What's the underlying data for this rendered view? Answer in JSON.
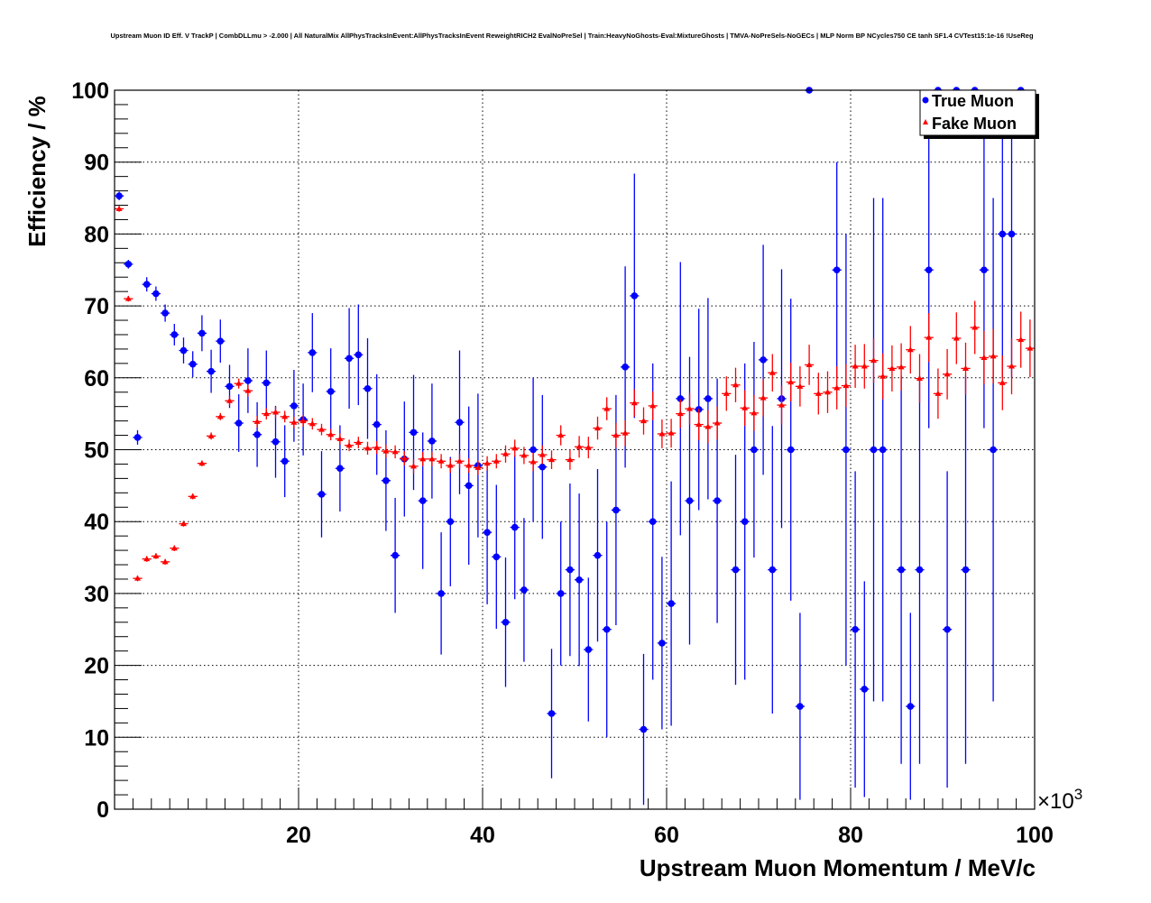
{
  "chart_data": {
    "type": "scatter",
    "title": "Upstream Muon ID Eff. V TrackP | CombDLLmu > -2.000 | All NaturalMix AllPhysTracksInEvent:AllPhysTracksInEvent ReweightRICH2 EvalNoPreSel | Train:HeavyNoGhosts-Eval:MixtureGhosts | TMVA-NoPreSels-NoGECs | MLP Norm BP NCycles750 CE tanh SF1.4 CVTest15:1e-16 !UseReg",
    "xlabel": "Upstream Muon Momentum / MeV/c",
    "ylabel": "Efficiency / %",
    "x_multiplier": "×10",
    "x_multiplier_exp": "3",
    "xlim": [
      0,
      100
    ],
    "ylim": [
      0,
      100
    ],
    "xticks": [
      "20",
      "40",
      "60",
      "80",
      "100"
    ],
    "yticks": [
      "0",
      "10",
      "20",
      "30",
      "40",
      "50",
      "60",
      "70",
      "80",
      "90",
      "100"
    ],
    "grid": true,
    "legend_position": "top-right",
    "series": [
      {
        "name": "True Muon",
        "color": "#0000ff",
        "marker": "circle",
        "points": [
          [
            0.5,
            85.3,
            0.6
          ],
          [
            1.5,
            75.8,
            0.6
          ],
          [
            2.5,
            51.7,
            1
          ],
          [
            3.5,
            73.0,
            1
          ],
          [
            4.5,
            71.7,
            1
          ],
          [
            5.5,
            69.0,
            1.2
          ],
          [
            6.5,
            66.0,
            1.5
          ],
          [
            7.5,
            63.8,
            1.8
          ],
          [
            8.5,
            61.9,
            1.8
          ],
          [
            9.5,
            66.2,
            2.5
          ],
          [
            10.5,
            60.9,
            3
          ],
          [
            11.5,
            65.1,
            3
          ],
          [
            12.5,
            58.8,
            3
          ],
          [
            13.5,
            53.7,
            4
          ],
          [
            14.5,
            59.6,
            4.5
          ],
          [
            15.5,
            52.1,
            4.5
          ],
          [
            16.5,
            59.3,
            4.5
          ],
          [
            17.5,
            51.1,
            5
          ],
          [
            18.5,
            48.4,
            5
          ],
          [
            19.5,
            56.1,
            5
          ],
          [
            20.5,
            54.2,
            5
          ],
          [
            21.5,
            63.5,
            5.5
          ],
          [
            22.5,
            43.8,
            6
          ],
          [
            23.5,
            58.1,
            6
          ],
          [
            24.5,
            47.4,
            6
          ],
          [
            25.5,
            62.7,
            7
          ],
          [
            26.5,
            63.2,
            7
          ],
          [
            27.5,
            58.5,
            7
          ],
          [
            28.5,
            53.5,
            7
          ],
          [
            29.5,
            45.7,
            7
          ],
          [
            30.5,
            35.3,
            8
          ],
          [
            31.5,
            48.7,
            8
          ],
          [
            32.5,
            52.4,
            8
          ],
          [
            33.5,
            42.9,
            9.5
          ],
          [
            34.5,
            51.2,
            8
          ],
          [
            35.5,
            30.0,
            8.5
          ],
          [
            36.5,
            40.0,
            9
          ],
          [
            37.5,
            53.8,
            10
          ],
          [
            38.5,
            45.0,
            11
          ],
          [
            39.5,
            47.8,
            10
          ],
          [
            40.5,
            38.5,
            10
          ],
          [
            41.5,
            35.1,
            10
          ],
          [
            42.5,
            26.0,
            9
          ],
          [
            43.5,
            39.2,
            10
          ],
          [
            44.5,
            30.5,
            10
          ],
          [
            45.5,
            50.0,
            10
          ],
          [
            46.5,
            47.6,
            10
          ],
          [
            47.5,
            13.3,
            9
          ],
          [
            48.5,
            30.0,
            10
          ],
          [
            49.5,
            33.3,
            12
          ],
          [
            50.5,
            31.9,
            12
          ],
          [
            51.5,
            22.2,
            10
          ],
          [
            52.5,
            35.3,
            12
          ],
          [
            53.5,
            25.0,
            15
          ],
          [
            54.5,
            41.6,
            16
          ],
          [
            55.5,
            61.5,
            14
          ],
          [
            56.5,
            71.4,
            17
          ],
          [
            57.5,
            11.1,
            10.5
          ],
          [
            58.5,
            40.0,
            22
          ],
          [
            59.5,
            23.1,
            12
          ],
          [
            60.5,
            28.6,
            17
          ],
          [
            61.5,
            57.1,
            19
          ],
          [
            62.5,
            42.9,
            20
          ],
          [
            63.5,
            55.6,
            14
          ],
          [
            64.5,
            57.1,
            14
          ],
          [
            65.5,
            42.9,
            17
          ],
          [
            67.5,
            33.3,
            16
          ],
          [
            68.5,
            40.0,
            22
          ],
          [
            69.5,
            50.0,
            15
          ],
          [
            70.5,
            62.5,
            16
          ],
          [
            71.5,
            33.3,
            20
          ],
          [
            72.5,
            57.1,
            18
          ],
          [
            73.5,
            50.0,
            21
          ],
          [
            74.5,
            14.3,
            13
          ],
          [
            75.5,
            100,
            0
          ],
          [
            78.5,
            75.0,
            15
          ],
          [
            79.5,
            50.0,
            30
          ],
          [
            80.5,
            25.0,
            22
          ],
          [
            81.5,
            16.7,
            15
          ],
          [
            82.5,
            50.0,
            35
          ],
          [
            83.5,
            50.0,
            35
          ],
          [
            85.5,
            33.3,
            27
          ],
          [
            86.5,
            14.3,
            13
          ],
          [
            87.5,
            33.3,
            27
          ],
          [
            88.5,
            75.0,
            22
          ],
          [
            89.5,
            100,
            0
          ],
          [
            90.5,
            25.0,
            22
          ],
          [
            91.5,
            100,
            0
          ],
          [
            92.5,
            33.3,
            27
          ],
          [
            93.5,
            100,
            0
          ],
          [
            94.5,
            75.0,
            22
          ],
          [
            95.5,
            50.0,
            35
          ],
          [
            96.5,
            80.0,
            20
          ],
          [
            97.5,
            80.0,
            20
          ],
          [
            98.5,
            100,
            0
          ]
        ]
      },
      {
        "name": "Fake Muon",
        "color": "#ff0000",
        "marker": "triangle",
        "points": [
          [
            0.5,
            83.5,
            0.4
          ],
          [
            1.5,
            71.0,
            0.4
          ],
          [
            2.5,
            32.1,
            0.4
          ],
          [
            3.5,
            34.8,
            0.4
          ],
          [
            4.5,
            35.2,
            0.4
          ],
          [
            5.5,
            34.4,
            0.4
          ],
          [
            6.5,
            36.3,
            0.4
          ],
          [
            7.5,
            39.7,
            0.4
          ],
          [
            8.5,
            43.5,
            0.4
          ],
          [
            9.5,
            48.1,
            0.4
          ],
          [
            10.5,
            51.9,
            0.5
          ],
          [
            11.5,
            54.6,
            0.5
          ],
          [
            12.5,
            56.8,
            0.7
          ],
          [
            13.5,
            59.2,
            0.7
          ],
          [
            14.5,
            58.2,
            0.8
          ],
          [
            15.5,
            53.9,
            0.8
          ],
          [
            16.5,
            55.0,
            0.8
          ],
          [
            17.5,
            55.2,
            0.8
          ],
          [
            18.5,
            54.6,
            0.8
          ],
          [
            19.5,
            53.8,
            0.8
          ],
          [
            20.5,
            54.0,
            0.8
          ],
          [
            21.5,
            53.6,
            0.8
          ],
          [
            22.5,
            52.8,
            0.8
          ],
          [
            23.5,
            52.1,
            0.8
          ],
          [
            24.5,
            51.5,
            0.8
          ],
          [
            25.5,
            50.6,
            0.8
          ],
          [
            26.5,
            51.0,
            0.8
          ],
          [
            27.5,
            50.2,
            0.9
          ],
          [
            28.5,
            50.3,
            0.9
          ],
          [
            29.5,
            49.8,
            0.9
          ],
          [
            30.5,
            49.7,
            0.9
          ],
          [
            31.5,
            48.8,
            1
          ],
          [
            32.5,
            47.7,
            1
          ],
          [
            33.5,
            48.7,
            1
          ],
          [
            34.5,
            48.7,
            1
          ],
          [
            35.5,
            48.4,
            1
          ],
          [
            36.5,
            47.8,
            1
          ],
          [
            37.5,
            48.4,
            1
          ],
          [
            38.5,
            47.8,
            1
          ],
          [
            39.5,
            47.5,
            1
          ],
          [
            40.5,
            48.1,
            1
          ],
          [
            41.5,
            48.4,
            1
          ],
          [
            42.5,
            49.4,
            1.2
          ],
          [
            43.5,
            50.2,
            1.2
          ],
          [
            44.5,
            49.2,
            1.2
          ],
          [
            45.5,
            48.3,
            1.3
          ],
          [
            46.5,
            49.3,
            1.3
          ],
          [
            47.5,
            48.6,
            1.3
          ],
          [
            48.5,
            52.0,
            1.4
          ],
          [
            49.5,
            48.6,
            1.4
          ],
          [
            50.5,
            50.4,
            1.5
          ],
          [
            51.5,
            50.3,
            1.5
          ],
          [
            52.5,
            53.0,
            1.6
          ],
          [
            53.5,
            55.7,
            1.6
          ],
          [
            54.5,
            52.0,
            1.7
          ],
          [
            55.5,
            52.3,
            1.8
          ],
          [
            56.5,
            56.5,
            1.9
          ],
          [
            57.5,
            54.0,
            1.9
          ],
          [
            58.5,
            56.1,
            2
          ],
          [
            59.5,
            52.2,
            2
          ],
          [
            60.5,
            52.3,
            2
          ],
          [
            61.5,
            55.0,
            2
          ],
          [
            62.5,
            55.7,
            2.2
          ],
          [
            63.5,
            53.5,
            2.2
          ],
          [
            64.5,
            53.2,
            2.3
          ],
          [
            65.5,
            53.7,
            2.3
          ],
          [
            66.5,
            57.8,
            2.4
          ],
          [
            67.5,
            59.0,
            2.4
          ],
          [
            68.5,
            55.8,
            2.5
          ],
          [
            69.5,
            55.1,
            2.5
          ],
          [
            70.5,
            57.2,
            2.6
          ],
          [
            71.5,
            60.7,
            2.6
          ],
          [
            72.5,
            56.2,
            2.7
          ],
          [
            73.5,
            59.4,
            2.7
          ],
          [
            74.5,
            58.8,
            2.8
          ],
          [
            75.5,
            61.8,
            2.8
          ],
          [
            76.5,
            57.8,
            2.9
          ],
          [
            77.5,
            58.0,
            2.9
          ],
          [
            78.5,
            58.6,
            3
          ],
          [
            79.5,
            58.9,
            3
          ],
          [
            80.5,
            61.6,
            3
          ],
          [
            81.5,
            61.6,
            3.1
          ],
          [
            82.5,
            62.4,
            3.1
          ],
          [
            83.5,
            60.2,
            3.2
          ],
          [
            84.5,
            61.3,
            3.2
          ],
          [
            85.5,
            61.5,
            3.3
          ],
          [
            86.5,
            63.9,
            3.3
          ],
          [
            87.5,
            59.9,
            3.4
          ],
          [
            88.5,
            65.6,
            3.4
          ],
          [
            89.5,
            57.8,
            3.5
          ],
          [
            90.5,
            60.5,
            3.5
          ],
          [
            91.5,
            65.5,
            3.6
          ],
          [
            92.5,
            61.3,
            3.6
          ],
          [
            93.5,
            67.0,
            3.7
          ],
          [
            94.5,
            62.8,
            3.7
          ],
          [
            95.5,
            63.0,
            3.8
          ],
          [
            96.5,
            59.3,
            3.8
          ],
          [
            97.5,
            61.6,
            3.9
          ],
          [
            98.5,
            65.3,
            3.9
          ],
          [
            99.5,
            64.1,
            4
          ]
        ]
      }
    ]
  }
}
